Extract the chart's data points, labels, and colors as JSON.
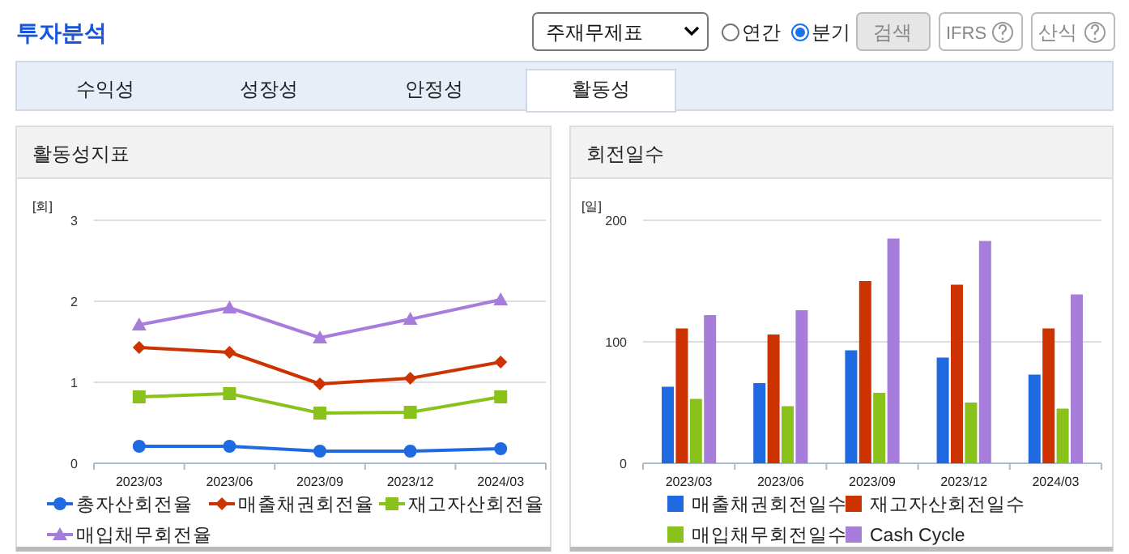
{
  "chart_data": [
    {
      "type": "line",
      "title": "활동성지표",
      "ylabel": "[회]",
      "categories": [
        "2023/03",
        "2023/06",
        "2023/09",
        "2023/12",
        "2024/03"
      ],
      "ylim": [
        0,
        3
      ],
      "yticks": [
        0,
        1,
        2,
        3
      ],
      "grid": "y",
      "legend": "bottom",
      "series": [
        {
          "name": "총자산회전율",
          "color": "#1f6ae0",
          "marker": "circle",
          "values": [
            0.21,
            0.21,
            0.15,
            0.15,
            0.18
          ]
        },
        {
          "name": "매출채권회전율",
          "color": "#cc3300",
          "marker": "diamond",
          "values": [
            1.43,
            1.37,
            0.98,
            1.05,
            1.25
          ]
        },
        {
          "name": "재고자산회전율",
          "color": "#88c21a",
          "marker": "square",
          "values": [
            0.82,
            0.86,
            0.62,
            0.63,
            0.82
          ]
        },
        {
          "name": "매입채무회전율",
          "color": "#a77ddb",
          "marker": "triangle",
          "values": [
            1.71,
            1.92,
            1.55,
            1.78,
            2.02
          ]
        }
      ],
      "annotations": [
        "투자분석",
        "주재무제표",
        "연간",
        "분기",
        "검색",
        "IFRS",
        "산식",
        "수익성",
        "성장성",
        "안정성",
        "활동성"
      ]
    },
    {
      "type": "bar",
      "title": "회전일수",
      "ylabel": "[일]",
      "categories": [
        "2023/03",
        "2023/06",
        "2023/09",
        "2023/12",
        "2024/03"
      ],
      "ylim": [
        0,
        200
      ],
      "yticks": [
        0,
        100,
        200
      ],
      "grid": "y",
      "legend": "bottom",
      "series": [
        {
          "name": "매출채권회전일수",
          "color": "#1f6ae0",
          "values": [
            63,
            66,
            93,
            87,
            73
          ]
        },
        {
          "name": "재고자산회전일수",
          "color": "#cc3300",
          "values": [
            111,
            106,
            150,
            147,
            111
          ]
        },
        {
          "name": "매입채무회전일수",
          "color": "#88c21a",
          "values": [
            53,
            47,
            58,
            50,
            45
          ]
        },
        {
          "name": "Cash Cycle",
          "color": "#a77ddb",
          "values": [
            122,
            126,
            185,
            183,
            139
          ]
        }
      ]
    }
  ]
}
